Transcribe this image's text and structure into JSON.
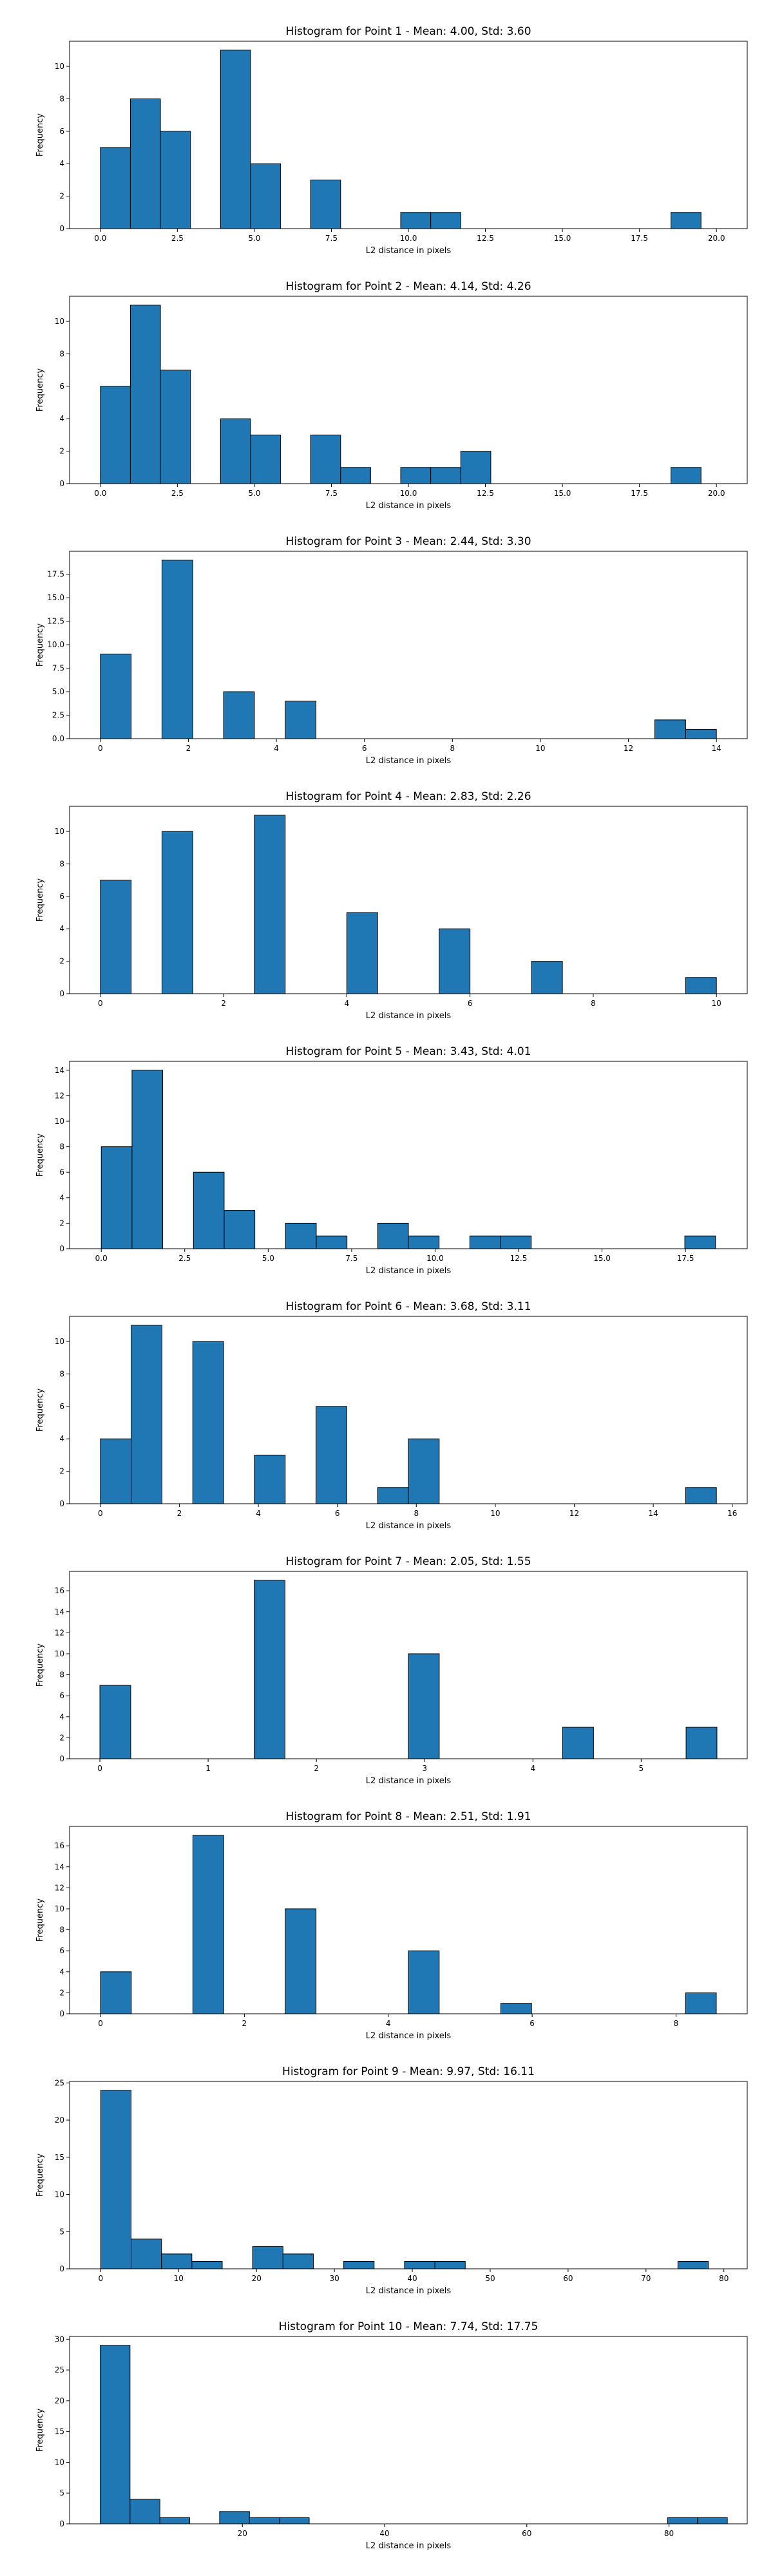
{
  "chart_data": [
    {
      "type": "bar",
      "title": "Histogram for Point 1 - Mean: 4.00, Std: 3.60",
      "xlabel": "L2 distance in pixels",
      "ylabel": "Frequency",
      "xlim": [
        -1.0,
        21.0
      ],
      "ylim": [
        0,
        11.55
      ],
      "xticks": [
        0.0,
        2.5,
        5.0,
        7.5,
        10.0,
        12.5,
        15.0,
        17.5,
        20.0
      ],
      "xtick_labels": [
        "0.0",
        "2.5",
        "5.0",
        "7.5",
        "10.0",
        "12.5",
        "15.0",
        "17.5",
        "20.0"
      ],
      "yticks": [
        0,
        2,
        4,
        6,
        8,
        10
      ],
      "ytick_labels": [
        "0",
        "2",
        "4",
        "6",
        "8",
        "10"
      ],
      "bin_width": 0.975,
      "bins": [
        {
          "x": 0.0,
          "count": 5
        },
        {
          "x": 0.975,
          "count": 8
        },
        {
          "x": 1.95,
          "count": 6
        },
        {
          "x": 3.9,
          "count": 11
        },
        {
          "x": 4.875,
          "count": 4
        },
        {
          "x": 6.825,
          "count": 3
        },
        {
          "x": 9.75,
          "count": 1
        },
        {
          "x": 10.725,
          "count": 1
        },
        {
          "x": 18.525,
          "count": 1
        }
      ]
    },
    {
      "type": "bar",
      "title": "Histogram for Point 2 - Mean: 4.14, Std: 4.26",
      "xlabel": "L2 distance in pixels",
      "ylabel": "Frequency",
      "xlim": [
        -1.0,
        21.0
      ],
      "ylim": [
        0,
        11.55
      ],
      "xticks": [
        0.0,
        2.5,
        5.0,
        7.5,
        10.0,
        12.5,
        15.0,
        17.5,
        20.0
      ],
      "xtick_labels": [
        "0.0",
        "2.5",
        "5.0",
        "7.5",
        "10.0",
        "12.5",
        "15.0",
        "17.5",
        "20.0"
      ],
      "yticks": [
        0,
        2,
        4,
        6,
        8,
        10
      ],
      "ytick_labels": [
        "0",
        "2",
        "4",
        "6",
        "8",
        "10"
      ],
      "bin_width": 0.975,
      "bins": [
        {
          "x": 0.0,
          "count": 6
        },
        {
          "x": 0.975,
          "count": 11
        },
        {
          "x": 1.95,
          "count": 7
        },
        {
          "x": 3.9,
          "count": 4
        },
        {
          "x": 4.875,
          "count": 3
        },
        {
          "x": 6.825,
          "count": 3
        },
        {
          "x": 7.8,
          "count": 1
        },
        {
          "x": 9.75,
          "count": 1
        },
        {
          "x": 10.725,
          "count": 1
        },
        {
          "x": 11.7,
          "count": 2
        },
        {
          "x": 18.525,
          "count": 1
        }
      ]
    },
    {
      "type": "bar",
      "title": "Histogram for Point 3 - Mean: 2.44, Std: 3.30",
      "xlabel": "L2 distance in pixels",
      "ylabel": "Frequency",
      "xlim": [
        -0.7,
        14.7
      ],
      "ylim": [
        0,
        19.95
      ],
      "xticks": [
        0,
        2,
        4,
        6,
        8,
        10,
        12,
        14
      ],
      "xtick_labels": [
        "0",
        "2",
        "4",
        "6",
        "8",
        "10",
        "12",
        "14"
      ],
      "yticks": [
        0.0,
        2.5,
        5.0,
        7.5,
        10.0,
        12.5,
        15.0,
        17.5
      ],
      "ytick_labels": [
        "0.0",
        "2.5",
        "5.0",
        "7.5",
        "10.0",
        "12.5",
        "15.0",
        "17.5"
      ],
      "bin_width": 0.7,
      "bins": [
        {
          "x": 0.0,
          "count": 9
        },
        {
          "x": 1.4,
          "count": 19
        },
        {
          "x": 2.8,
          "count": 5
        },
        {
          "x": 4.2,
          "count": 4
        },
        {
          "x": 12.6,
          "count": 2
        },
        {
          "x": 13.3,
          "count": 1
        }
      ]
    },
    {
      "type": "bar",
      "title": "Histogram for Point 4 - Mean: 2.83, Std: 2.26",
      "xlabel": "L2 distance in pixels",
      "ylabel": "Frequency",
      "xlim": [
        -0.5,
        10.5
      ],
      "ylim": [
        0,
        11.55
      ],
      "xticks": [
        0,
        2,
        4,
        6,
        8,
        10
      ],
      "xtick_labels": [
        "0",
        "2",
        "4",
        "6",
        "8",
        "10"
      ],
      "yticks": [
        0,
        2,
        4,
        6,
        8,
        10
      ],
      "ytick_labels": [
        "0",
        "2",
        "4",
        "6",
        "8",
        "10"
      ],
      "bin_width": 0.5,
      "bins": [
        {
          "x": 0.0,
          "count": 7
        },
        {
          "x": 1.0,
          "count": 10
        },
        {
          "x": 2.5,
          "count": 11
        },
        {
          "x": 4.0,
          "count": 5
        },
        {
          "x": 5.5,
          "count": 4
        },
        {
          "x": 7.0,
          "count": 2
        },
        {
          "x": 9.5,
          "count": 1
        }
      ]
    },
    {
      "type": "bar",
      "title": "Histogram for Point 5 - Mean: 3.43, Std: 4.01",
      "xlabel": "L2 distance in pixels",
      "ylabel": "Frequency",
      "xlim": [
        -0.95,
        19.35
      ],
      "ylim": [
        0,
        14.7
      ],
      "xticks": [
        0.0,
        2.5,
        5.0,
        7.5,
        10.0,
        12.5,
        15.0,
        17.5
      ],
      "xtick_labels": [
        "0.0",
        "2.5",
        "5.0",
        "7.5",
        "10.0",
        "12.5",
        "15.0",
        "17.5"
      ],
      "yticks": [
        0,
        2,
        4,
        6,
        8,
        10,
        12,
        14
      ],
      "ytick_labels": [
        "0",
        "2",
        "4",
        "6",
        "8",
        "10",
        "12",
        "14"
      ],
      "bin_width": 0.92,
      "bins": [
        {
          "x": 0.0,
          "count": 8
        },
        {
          "x": 0.92,
          "count": 14
        },
        {
          "x": 2.76,
          "count": 6
        },
        {
          "x": 3.68,
          "count": 3
        },
        {
          "x": 5.52,
          "count": 2
        },
        {
          "x": 6.44,
          "count": 1
        },
        {
          "x": 8.28,
          "count": 2
        },
        {
          "x": 9.2,
          "count": 1
        },
        {
          "x": 11.04,
          "count": 1
        },
        {
          "x": 11.96,
          "count": 1
        },
        {
          "x": 17.48,
          "count": 1
        }
      ]
    },
    {
      "type": "bar",
      "title": "Histogram for Point 6 - Mean: 3.68, Std: 3.11",
      "xlabel": "L2 distance in pixels",
      "ylabel": "Frequency",
      "xlim": [
        -0.78,
        16.38
      ],
      "ylim": [
        0,
        11.55
      ],
      "xticks": [
        0,
        2,
        4,
        6,
        8,
        10,
        12,
        14,
        16
      ],
      "xtick_labels": [
        "0",
        "2",
        "4",
        "6",
        "8",
        "10",
        "12",
        "14",
        "16"
      ],
      "yticks": [
        0,
        2,
        4,
        6,
        8,
        10
      ],
      "ytick_labels": [
        "0",
        "2",
        "4",
        "6",
        "8",
        "10"
      ],
      "bin_width": 0.78,
      "bins": [
        {
          "x": 0.0,
          "count": 4
        },
        {
          "x": 0.78,
          "count": 11
        },
        {
          "x": 2.34,
          "count": 10
        },
        {
          "x": 3.9,
          "count": 3
        },
        {
          "x": 5.46,
          "count": 6
        },
        {
          "x": 7.02,
          "count": 1
        },
        {
          "x": 7.8,
          "count": 4
        },
        {
          "x": 14.82,
          "count": 1
        }
      ]
    },
    {
      "type": "bar",
      "title": "Histogram for Point 7 - Mean: 2.05, Std: 1.55",
      "xlabel": "L2 distance in pixels",
      "ylabel": "Frequency",
      "xlim": [
        -0.28,
        5.98
      ],
      "ylim": [
        0,
        17.85
      ],
      "xticks": [
        0,
        1,
        2,
        3,
        4,
        5
      ],
      "xtick_labels": [
        "0",
        "1",
        "2",
        "3",
        "4",
        "5"
      ],
      "yticks": [
        0,
        2,
        4,
        6,
        8,
        10,
        12,
        14,
        16
      ],
      "ytick_labels": [
        "0",
        "2",
        "4",
        "6",
        "8",
        "10",
        "12",
        "14",
        "16"
      ],
      "bin_width": 0.285,
      "bins": [
        {
          "x": 0.0,
          "count": 7
        },
        {
          "x": 1.425,
          "count": 17
        },
        {
          "x": 2.85,
          "count": 10
        },
        {
          "x": 4.275,
          "count": 3
        },
        {
          "x": 5.415,
          "count": 3
        }
      ]
    },
    {
      "type": "bar",
      "title": "Histogram for Point 8 - Mean: 2.51, Std: 1.91",
      "xlabel": "L2 distance in pixels",
      "ylabel": "Frequency",
      "xlim": [
        -0.43,
        8.99
      ],
      "ylim": [
        0,
        17.85
      ],
      "xticks": [
        0,
        2,
        4,
        6,
        8
      ],
      "xtick_labels": [
        "0",
        "2",
        "4",
        "6",
        "8"
      ],
      "yticks": [
        0,
        2,
        4,
        6,
        8,
        10,
        12,
        14,
        16
      ],
      "ytick_labels": [
        "0",
        "2",
        "4",
        "6",
        "8",
        "10",
        "12",
        "14",
        "16"
      ],
      "bin_width": 0.428,
      "bins": [
        {
          "x": 0.0,
          "count": 4
        },
        {
          "x": 1.284,
          "count": 17
        },
        {
          "x": 2.568,
          "count": 10
        },
        {
          "x": 4.28,
          "count": 6
        },
        {
          "x": 5.564,
          "count": 1
        },
        {
          "x": 8.132,
          "count": 2
        }
      ]
    },
    {
      "type": "bar",
      "title": "Histogram for Point 9 - Mean: 9.97, Std: 16.11",
      "xlabel": "L2 distance in pixels",
      "ylabel": "Frequency",
      "xlim": [
        -4.0,
        83.0
      ],
      "ylim": [
        0,
        25.2
      ],
      "xticks": [
        0,
        10,
        20,
        30,
        40,
        50,
        60,
        70,
        80
      ],
      "xtick_labels": [
        "0",
        "10",
        "20",
        "30",
        "40",
        "50",
        "60",
        "70",
        "80"
      ],
      "yticks": [
        0,
        5,
        10,
        15,
        20,
        25
      ],
      "ytick_labels": [
        "0",
        "5",
        "10",
        "15",
        "20",
        "25"
      ],
      "bin_width": 3.9,
      "bins": [
        {
          "x": 0.0,
          "count": 24
        },
        {
          "x": 3.9,
          "count": 4
        },
        {
          "x": 7.8,
          "count": 2
        },
        {
          "x": 11.7,
          "count": 1
        },
        {
          "x": 19.5,
          "count": 3
        },
        {
          "x": 23.4,
          "count": 2
        },
        {
          "x": 31.2,
          "count": 1
        },
        {
          "x": 39.0,
          "count": 1
        },
        {
          "x": 42.9,
          "count": 1
        },
        {
          "x": 74.1,
          "count": 1
        }
      ]
    },
    {
      "type": "bar",
      "title": "Histogram for Point 10 - Mean: 7.74, Std: 17.75",
      "xlabel": "L2 distance in pixels",
      "ylabel": "Frequency",
      "xlim": [
        -4.3,
        91.0
      ],
      "ylim": [
        0,
        30.45
      ],
      "xticks": [
        20,
        40,
        60,
        80
      ],
      "xtick_labels": [
        "20",
        "40",
        "60",
        "80"
      ],
      "yticks": [
        0,
        5,
        10,
        15,
        20,
        25,
        30
      ],
      "ytick_labels": [
        "0",
        "5",
        "10",
        "15",
        "20",
        "25",
        "30"
      ],
      "bin_width": 4.2,
      "bins": [
        {
          "x": 0.0,
          "count": 29
        },
        {
          "x": 4.2,
          "count": 4
        },
        {
          "x": 8.4,
          "count": 1
        },
        {
          "x": 16.8,
          "count": 2
        },
        {
          "x": 21.0,
          "count": 1
        },
        {
          "x": 25.2,
          "count": 1
        },
        {
          "x": 79.8,
          "count": 1
        },
        {
          "x": 84.0,
          "count": 1
        }
      ]
    }
  ]
}
